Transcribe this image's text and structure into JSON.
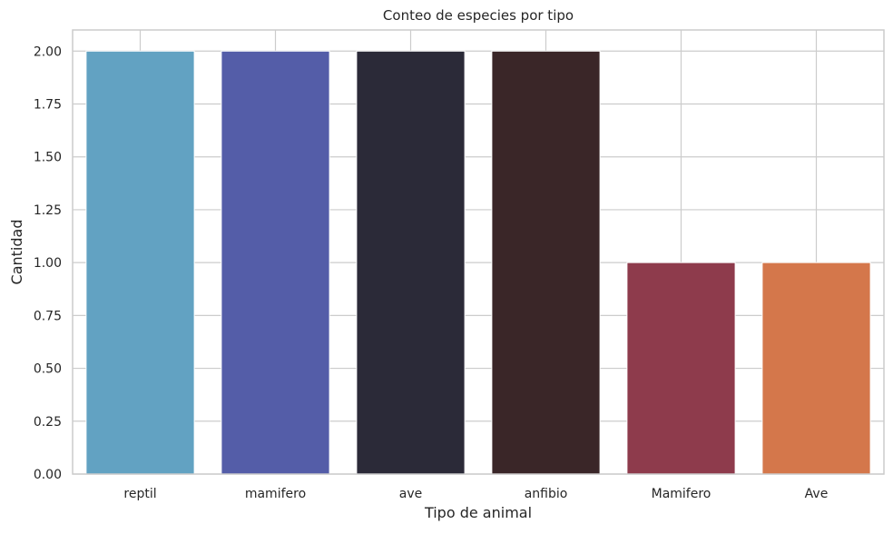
{
  "chart_data": {
    "type": "bar",
    "title": "Conteo de especies por tipo",
    "xlabel": "Tipo de animal",
    "ylabel": "Cantidad",
    "categories": [
      "reptil",
      "mamifero",
      "ave",
      "anfibio",
      "Mamifero",
      "Ave"
    ],
    "values": [
      2,
      2,
      2,
      2,
      1,
      1
    ],
    "colors": [
      "#62a2c2",
      "#545da8",
      "#2b2a38",
      "#3a2628",
      "#8e3b4c",
      "#d4774b"
    ],
    "ylim": [
      0,
      2.1
    ],
    "yticks": [
      "0.00",
      "0.25",
      "0.50",
      "0.75",
      "1.00",
      "1.25",
      "1.50",
      "1.75",
      "2.00"
    ],
    "grid": true,
    "legend": "none"
  }
}
